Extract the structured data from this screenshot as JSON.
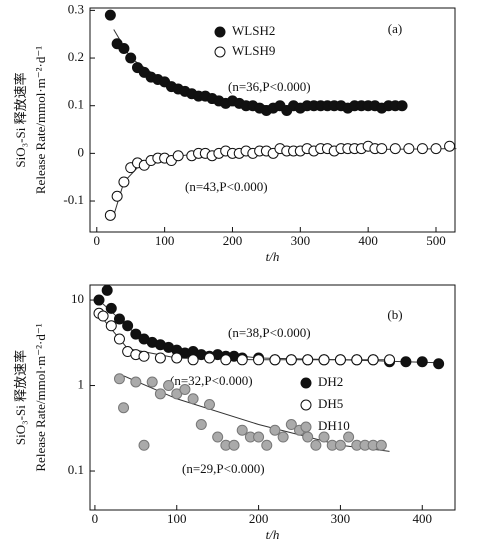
{
  "chart_data": [
    {
      "type": "scatter",
      "panel": "(a)",
      "ylabel": "SiO₃-Si 释放速率",
      "ylabel2": "Release Rate/mmol·m⁻²·d⁻¹",
      "xlabel": "t/h",
      "xlim": [
        -10,
        528
      ],
      "ylim": [
        -0.165,
        0.305
      ],
      "xticks": [
        0,
        100,
        200,
        300,
        400,
        500
      ],
      "yticks": [
        -0.1,
        0,
        0.1,
        0.2,
        0.3
      ],
      "legend": "upper center",
      "annotations": [
        "(n=36,P<0.000)",
        "(n=43,P<0.000)"
      ],
      "series": [
        {
          "name": "WLSH2",
          "color": "#111111",
          "fill": "#111111",
          "x": [
            20,
            30,
            40,
            50,
            60,
            70,
            80,
            90,
            100,
            110,
            120,
            130,
            140,
            150,
            160,
            170,
            180,
            190,
            200,
            210,
            220,
            230,
            240,
            250,
            260,
            270,
            280,
            290,
            300,
            310,
            320,
            330,
            340,
            350,
            360,
            370,
            380,
            390,
            400,
            410,
            420,
            430,
            440,
            450
          ],
          "values": [
            0.29,
            0.23,
            0.22,
            0.2,
            0.18,
            0.17,
            0.16,
            0.155,
            0.15,
            0.14,
            0.135,
            0.13,
            0.125,
            0.12,
            0.12,
            0.115,
            0.11,
            0.105,
            0.11,
            0.105,
            0.1,
            0.1,
            0.095,
            0.09,
            0.095,
            0.1,
            0.09,
            0.1,
            0.095,
            0.1,
            0.1,
            0.1,
            0.1,
            0.1,
            0.1,
            0.095,
            0.1,
            0.1,
            0.1,
            0.1,
            0.095,
            0.1,
            0.1,
            0.1
          ]
        },
        {
          "name": "WLSH9",
          "color": "#111111",
          "fill": "#ffffff",
          "x": [
            20,
            30,
            40,
            50,
            60,
            70,
            80,
            90,
            100,
            110,
            120,
            140,
            150,
            160,
            170,
            180,
            190,
            200,
            210,
            220,
            230,
            240,
            250,
            260,
            270,
            280,
            290,
            300,
            310,
            320,
            330,
            340,
            350,
            360,
            370,
            380,
            390,
            400,
            410,
            420,
            440,
            460,
            480,
            500,
            520
          ],
          "values": [
            -0.13,
            -0.09,
            -0.06,
            -0.03,
            -0.02,
            -0.025,
            -0.015,
            -0.01,
            -0.01,
            -0.015,
            -0.005,
            -0.005,
            0,
            0,
            -0.005,
            0,
            0.005,
            0,
            0,
            0.005,
            0,
            0.005,
            0.005,
            0,
            0.01,
            0.005,
            0.005,
            0.005,
            0.01,
            0.005,
            0.01,
            0.01,
            0.005,
            0.01,
            0.01,
            0.01,
            0.01,
            0.015,
            0.01,
            0.01,
            0.01,
            0.01,
            0.01,
            0.01,
            0.015
          ]
        }
      ],
      "fits": [
        {
          "x": [
            25,
            50,
            100,
            150,
            200,
            250,
            300,
            350,
            400,
            450
          ],
          "y": [
            0.26,
            0.2,
            0.15,
            0.125,
            0.11,
            0.1,
            0.1,
            0.1,
            0.1,
            0.1
          ]
        },
        {
          "x": [
            25,
            40,
            60,
            100,
            150,
            200,
            300,
            400,
            530
          ],
          "y": [
            -0.13,
            -0.06,
            -0.03,
            -0.01,
            0,
            0.003,
            0.006,
            0.008,
            0.01
          ]
        }
      ]
    },
    {
      "type": "scatter",
      "panel": "(b)",
      "yscale": "log",
      "ylabel": "SiO₃-Si 释放速率",
      "ylabel2": "Release Rate/mmol·m⁻²·d⁻¹",
      "xlabel": "t/h",
      "xlim": [
        -6,
        440
      ],
      "ylim": [
        0.035,
        15
      ],
      "xticks": [
        0,
        100,
        200,
        300,
        400
      ],
      "yticks": [
        0.1,
        1,
        10
      ],
      "legend": "right",
      "annotations": [
        "(n=38,P<0.000)",
        "(n=32,P<0.000)",
        "(n=29,P<0.000)"
      ],
      "series": [
        {
          "name": "DH2",
          "color": "#111111",
          "fill": "#111111",
          "x": [
            5,
            15,
            20,
            30,
            40,
            50,
            60,
            70,
            80,
            90,
            100,
            110,
            120,
            130,
            140,
            150,
            160,
            170,
            180,
            200,
            220,
            240,
            260,
            280,
            300,
            320,
            340,
            360,
            380,
            400,
            420
          ],
          "values": [
            10,
            13,
            8,
            6,
            5,
            4,
            3.5,
            3.2,
            3,
            2.8,
            2.6,
            2.4,
            2.5,
            2.3,
            2.2,
            2.3,
            2.2,
            2.2,
            2.1,
            2.1,
            2,
            2,
            2,
            2,
            2,
            2,
            2,
            1.9,
            1.9,
            1.9,
            1.8
          ]
        },
        {
          "name": "DH5",
          "color": "#111111",
          "fill": "#ffffff",
          "x": [
            5,
            10,
            20,
            30,
            40,
            50,
            60,
            80,
            100,
            120,
            140,
            160,
            180,
            200,
            220,
            240,
            260,
            280,
            300,
            320,
            340,
            360
          ],
          "values": [
            7,
            6.5,
            5,
            3.5,
            2.5,
            2.3,
            2.2,
            2.1,
            2.1,
            2,
            2.1,
            2,
            2,
            2,
            2,
            2,
            2,
            2,
            2,
            2,
            2,
            2
          ]
        },
        {
          "name": "DH10",
          "color": "#777777",
          "fill": "#aaaaaa",
          "x": [
            30,
            35,
            50,
            60,
            70,
            80,
            90,
            100,
            110,
            120,
            130,
            140,
            150,
            160,
            170,
            180,
            190,
            200,
            210,
            220,
            230,
            240,
            250,
            260,
            270,
            280,
            290,
            300,
            310,
            320,
            330,
            340,
            350
          ],
          "values": [
            1.2,
            0.55,
            1.1,
            0.2,
            1.1,
            0.8,
            1,
            0.8,
            0.9,
            0.7,
            0.35,
            0.6,
            0.25,
            0.2,
            0.2,
            0.3,
            0.25,
            0.25,
            0.2,
            0.3,
            0.25,
            0.35,
            0.3,
            0.25,
            0.2,
            0.25,
            0.2,
            0.2,
            0.25,
            0.2,
            0.2,
            0.2,
            0.2
          ]
        }
      ],
      "fits": [
        {
          "x": [
            10,
            50,
            100,
            200,
            300,
            420
          ],
          "y": [
            9,
            4,
            2.7,
            2.1,
            2,
            1.85
          ]
        },
        {
          "x": [
            10,
            40,
            100,
            200,
            360
          ],
          "y": [
            6,
            2.7,
            2.1,
            2,
            2
          ]
        },
        {
          "x": [
            35,
            100,
            200,
            300,
            360
          ],
          "y": [
            1.3,
            0.7,
            0.35,
            0.2,
            0.17
          ]
        }
      ]
    }
  ]
}
